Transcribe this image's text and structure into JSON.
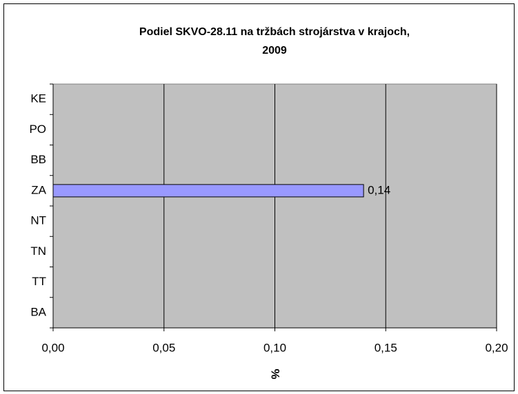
{
  "chart_data": {
    "type": "bar",
    "orientation": "horizontal",
    "title": [
      "Podiel SKVO-28.11 na tržbách strojárstva v krajoch,",
      "2009"
    ],
    "categories": [
      "KE",
      "PO",
      "BB",
      "ZA",
      "NT",
      "TN",
      "TT",
      "BA"
    ],
    "values": [
      null,
      null,
      null,
      0.14,
      null,
      null,
      null,
      null
    ],
    "value_labels": [
      null,
      null,
      null,
      "0,14",
      null,
      null,
      null,
      null
    ],
    "color": "#9999ff",
    "xlabel": "%",
    "xlim": [
      0,
      0.2
    ],
    "xticks": [
      {
        "value": 0,
        "label": "0,00"
      },
      {
        "value": 0.05,
        "label": "0,05"
      },
      {
        "value": 0.1,
        "label": "0,10"
      },
      {
        "value": 0.15,
        "label": "0,15"
      },
      {
        "value": 0.2,
        "label": "0,20"
      }
    ],
    "grid": true
  }
}
